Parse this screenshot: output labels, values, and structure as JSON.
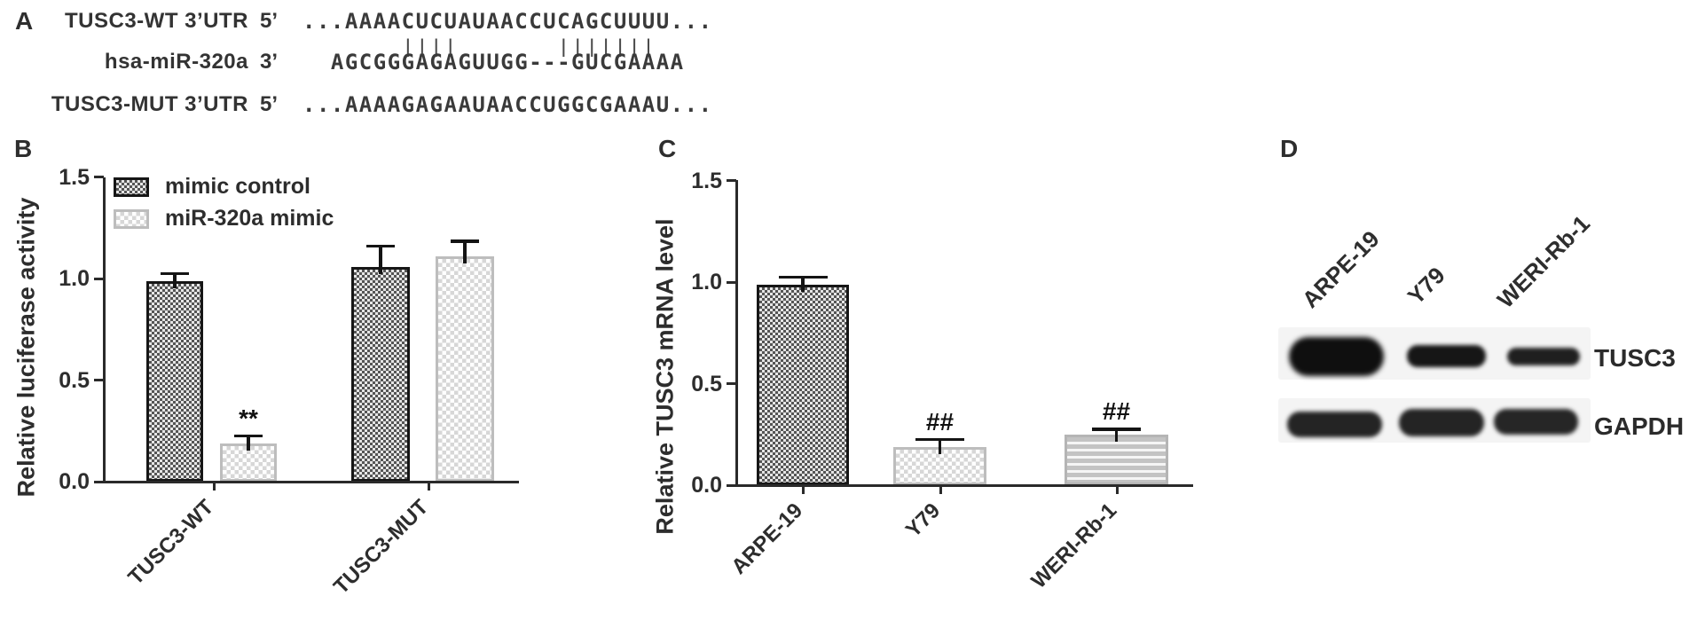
{
  "figure": {
    "background": "#ffffff",
    "text_color": "#2e2e2e"
  },
  "panel_a": {
    "label": "A",
    "rows": [
      {
        "name": "TUSC3-WT 3’UTR",
        "prime": "5’",
        "sequence": "...AAAACUCUAUAACCUCAGCUUUU..."
      },
      {
        "name": "hsa-miR-320a",
        "prime": "3’",
        "sequence": "  AGCGGGAGAGUUGG---GUCGAAAA"
      },
      {
        "name": "TUSC3-MUT 3’UTR",
        "prime": "5’",
        "sequence": "...AAAAGAGAAUAACCUGGCGAAAU..."
      }
    ],
    "pairing_marks": "       ||||       |||||||"
  },
  "chart_data": [
    {
      "id": "B",
      "panel_label": "B",
      "type": "bar",
      "title": "",
      "ylabel": "Relative luciferase activity",
      "xlabel": "",
      "ylim": [
        0,
        1.5
      ],
      "ytick_labels": [
        "0.0",
        "0.5",
        "1.0",
        "1.5"
      ],
      "categories": [
        "TUSC3-WT",
        "TUSC3-MUT"
      ],
      "series": [
        {
          "name": "mimic control",
          "pattern": "dark-checker",
          "values": [
            0.99,
            1.06
          ],
          "errors": [
            0.035,
            0.1
          ]
        },
        {
          "name": "miR-320a mimic",
          "pattern": "light-checker",
          "values": [
            0.19,
            1.11
          ],
          "errors": [
            0.035,
            0.075
          ]
        }
      ],
      "annotations": [
        {
          "text": "**",
          "category_index": 0,
          "series_index": 1
        }
      ],
      "legend_position": "top-left",
      "grid": false
    },
    {
      "id": "C",
      "panel_label": "C",
      "type": "bar",
      "title": "",
      "ylabel": "Relative TUSC3 mRNA level",
      "xlabel": "",
      "ylim": [
        0,
        1.5
      ],
      "ytick_labels": [
        "0.0",
        "0.5",
        "1.0",
        "1.5"
      ],
      "categories": [
        "ARPE-19",
        "Y79",
        "WERI-Rb-1"
      ],
      "series": [
        {
          "name": "",
          "values": [
            0.99,
            0.19,
            0.25
          ],
          "errors": [
            0.035,
            0.035,
            0.025
          ]
        }
      ],
      "bar_patterns": [
        "dark-checker",
        "light-checker",
        "h-stripes"
      ],
      "annotations": [
        {
          "text": "##",
          "category_index": 1,
          "series_index": 0
        },
        {
          "text": "##",
          "category_index": 2,
          "series_index": 0
        }
      ],
      "legend_position": "none",
      "grid": false
    }
  ],
  "panel_d": {
    "label": "D",
    "lane_labels": [
      "ARPE-19",
      "Y79",
      "WERI-Rb-1"
    ],
    "blot_rows": [
      {
        "protein": "TUSC3",
        "band_intensities": [
          1.0,
          0.6,
          0.45
        ]
      },
      {
        "protein": "GAPDH",
        "band_intensities": [
          0.85,
          0.85,
          0.85
        ]
      }
    ]
  }
}
